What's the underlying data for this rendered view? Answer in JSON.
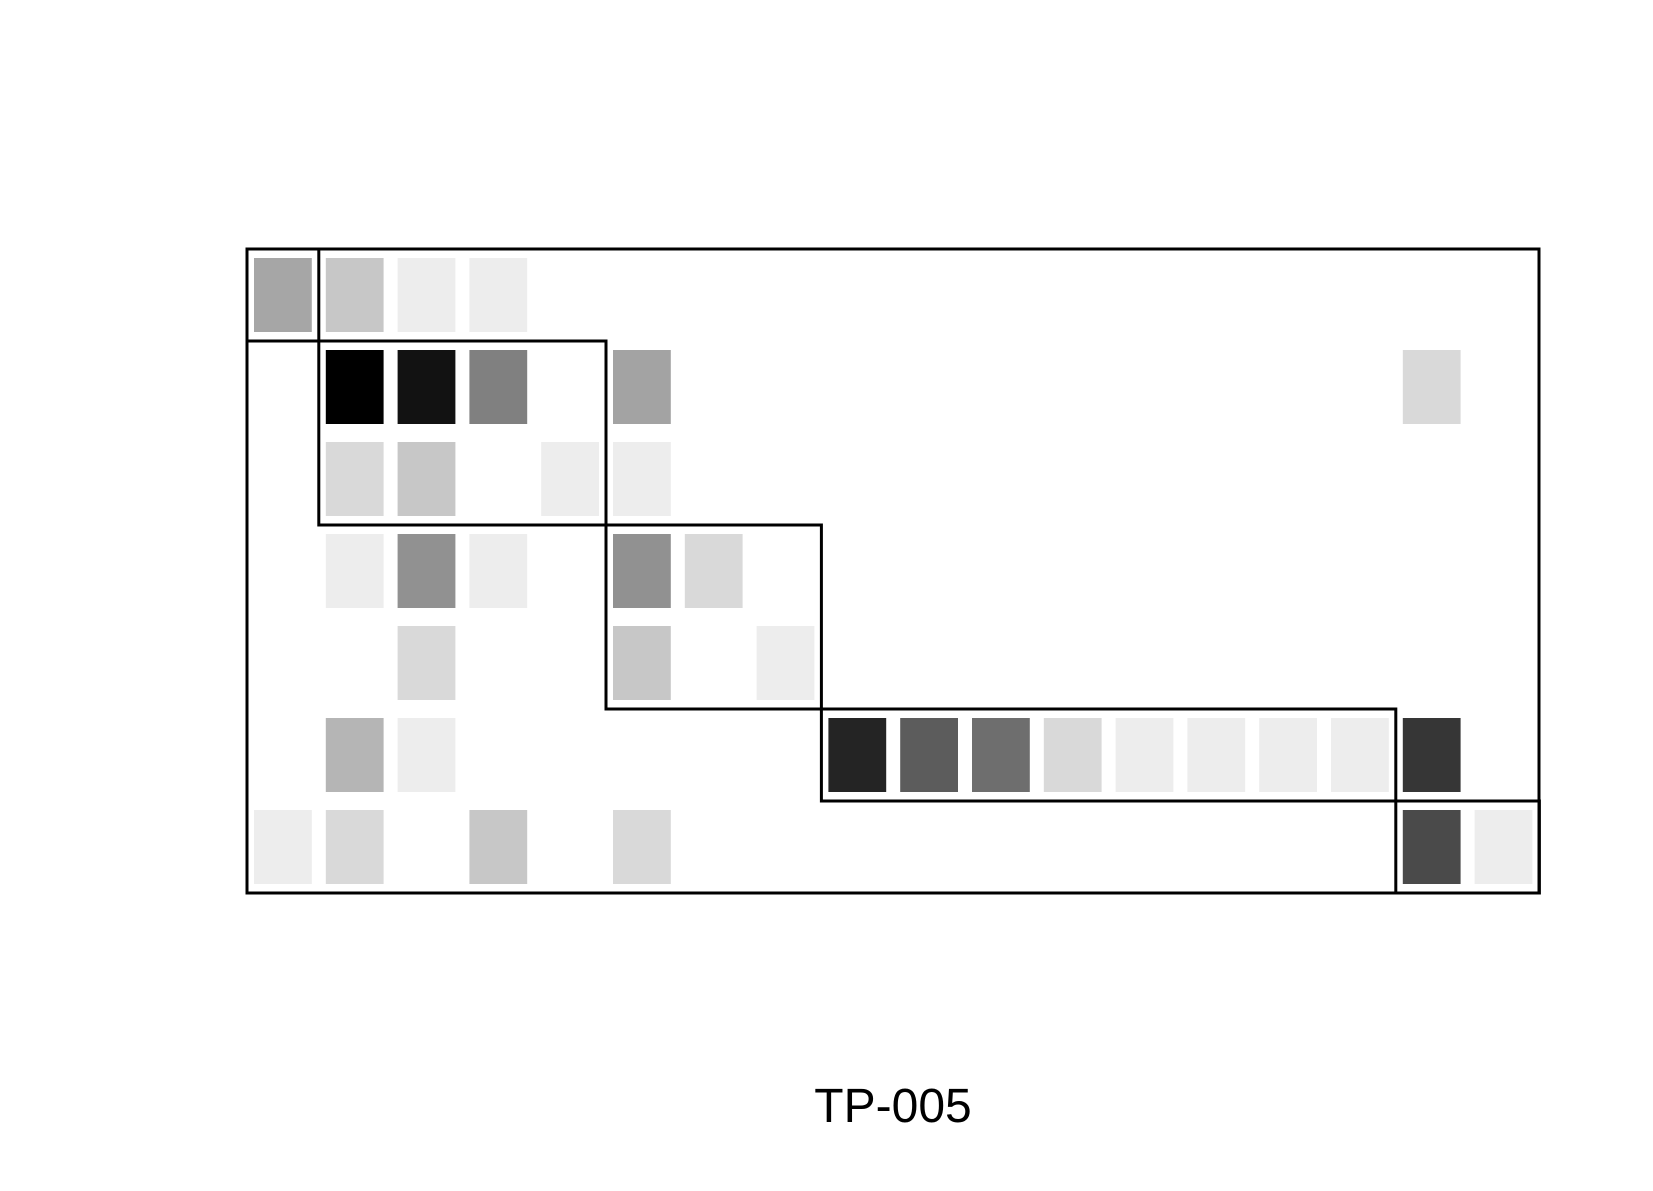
{
  "chart_data": {
    "type": "heatmap",
    "title": "TP-005",
    "rows": 7,
    "cols": 18,
    "value_range": [
      0,
      1
    ],
    "color_scale": {
      "low": "#ffffff",
      "high": "#000000"
    },
    "grid": false,
    "cells": [
      {
        "row": 0,
        "col": 0,
        "value": 0.35
      },
      {
        "row": 0,
        "col": 1,
        "value": 0.22
      },
      {
        "row": 0,
        "col": 2,
        "value": 0.07
      },
      {
        "row": 0,
        "col": 3,
        "value": 0.07
      },
      {
        "row": 1,
        "col": 1,
        "value": 1.0
      },
      {
        "row": 1,
        "col": 2,
        "value": 0.93
      },
      {
        "row": 1,
        "col": 3,
        "value": 0.5
      },
      {
        "row": 1,
        "col": 5,
        "value": 0.36
      },
      {
        "row": 1,
        "col": 16,
        "value": 0.15
      },
      {
        "row": 2,
        "col": 1,
        "value": 0.15
      },
      {
        "row": 2,
        "col": 2,
        "value": 0.22
      },
      {
        "row": 2,
        "col": 4,
        "value": 0.07
      },
      {
        "row": 2,
        "col": 5,
        "value": 0.07
      },
      {
        "row": 3,
        "col": 1,
        "value": 0.07
      },
      {
        "row": 3,
        "col": 2,
        "value": 0.43
      },
      {
        "row": 3,
        "col": 3,
        "value": 0.07
      },
      {
        "row": 3,
        "col": 5,
        "value": 0.43
      },
      {
        "row": 3,
        "col": 6,
        "value": 0.15
      },
      {
        "row": 4,
        "col": 2,
        "value": 0.15
      },
      {
        "row": 4,
        "col": 5,
        "value": 0.22
      },
      {
        "row": 4,
        "col": 7,
        "value": 0.07
      },
      {
        "row": 5,
        "col": 1,
        "value": 0.29
      },
      {
        "row": 5,
        "col": 2,
        "value": 0.07
      },
      {
        "row": 5,
        "col": 8,
        "value": 0.86
      },
      {
        "row": 5,
        "col": 9,
        "value": 0.64
      },
      {
        "row": 5,
        "col": 10,
        "value": 0.57
      },
      {
        "row": 5,
        "col": 11,
        "value": 0.15
      },
      {
        "row": 5,
        "col": 12,
        "value": 0.07
      },
      {
        "row": 5,
        "col": 13,
        "value": 0.07
      },
      {
        "row": 5,
        "col": 14,
        "value": 0.07
      },
      {
        "row": 5,
        "col": 15,
        "value": 0.07
      },
      {
        "row": 5,
        "col": 16,
        "value": 0.79
      },
      {
        "row": 6,
        "col": 0,
        "value": 0.07
      },
      {
        "row": 6,
        "col": 1,
        "value": 0.15
      },
      {
        "row": 6,
        "col": 3,
        "value": 0.22
      },
      {
        "row": 6,
        "col": 5,
        "value": 0.15
      },
      {
        "row": 6,
        "col": 16,
        "value": 0.71
      },
      {
        "row": 6,
        "col": 17,
        "value": 0.07
      }
    ],
    "blocks": [
      {
        "rows": [
          0,
          0
        ],
        "cols": [
          0,
          0
        ]
      },
      {
        "rows": [
          1,
          2
        ],
        "cols": [
          1,
          4
        ]
      },
      {
        "rows": [
          3,
          4
        ],
        "cols": [
          5,
          7
        ]
      },
      {
        "rows": [
          5,
          5
        ],
        "cols": [
          8,
          15
        ]
      },
      {
        "rows": [
          6,
          6
        ],
        "cols": [
          16,
          17
        ]
      }
    ]
  }
}
